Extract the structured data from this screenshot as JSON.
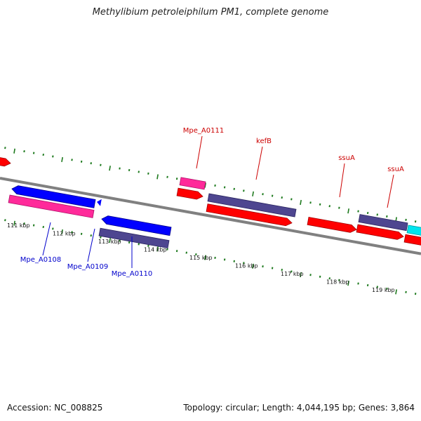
{
  "title": "Methylibium petroleiphilum PM1, complete genome",
  "footer": {
    "accession": "Accession: NC_008825",
    "stats": "Topology: circular; Length: 4,044,195 bp; Genes: 3,864"
  },
  "colors": {
    "backbone": "#808080",
    "tick": "#1e7a1e",
    "label_red": "#cc0000",
    "label_blue": "#0000cc",
    "gene_red": "#ff0000",
    "gene_blue": "#0000ff",
    "gene_pink": "#ff2a9a",
    "gene_slate": "#4e4690",
    "gene_cyan": "#00e5ee"
  },
  "scale_labels": [
    "111 kbp",
    "112 kbp",
    "113 kbp",
    "114 kbp",
    "115 kbp",
    "116 kbp",
    "117 kbp",
    "118 kbp",
    "119 kbp"
  ],
  "gene_labels": [
    {
      "text": "Mpe_A0111",
      "color": "red"
    },
    {
      "text": "kefB",
      "color": "red"
    },
    {
      "text": "ssuA",
      "color": "red"
    },
    {
      "text": "ssuA",
      "color": "red"
    },
    {
      "text": "Mpe_A0108",
      "color": "blue"
    },
    {
      "text": "Mpe_A0109",
      "color": "blue"
    },
    {
      "text": "Mpe_A0110",
      "color": "blue"
    }
  ],
  "genes": [
    {
      "color": "red",
      "strand": "+"
    },
    {
      "color": "blue",
      "strand": "-"
    },
    {
      "color": "pink",
      "strand": ""
    },
    {
      "color": "blue",
      "strand": "-"
    },
    {
      "color": "slate",
      "strand": ""
    },
    {
      "color": "pink",
      "strand": ""
    },
    {
      "color": "red",
      "strand": "+"
    },
    {
      "color": "slate",
      "strand": ""
    },
    {
      "color": "red",
      "strand": "+"
    },
    {
      "color": "red",
      "strand": "+"
    },
    {
      "color": "slate",
      "strand": ""
    },
    {
      "color": "red",
      "strand": "+"
    },
    {
      "color": "cyan",
      "strand": ""
    },
    {
      "color": "red",
      "strand": "+"
    }
  ]
}
